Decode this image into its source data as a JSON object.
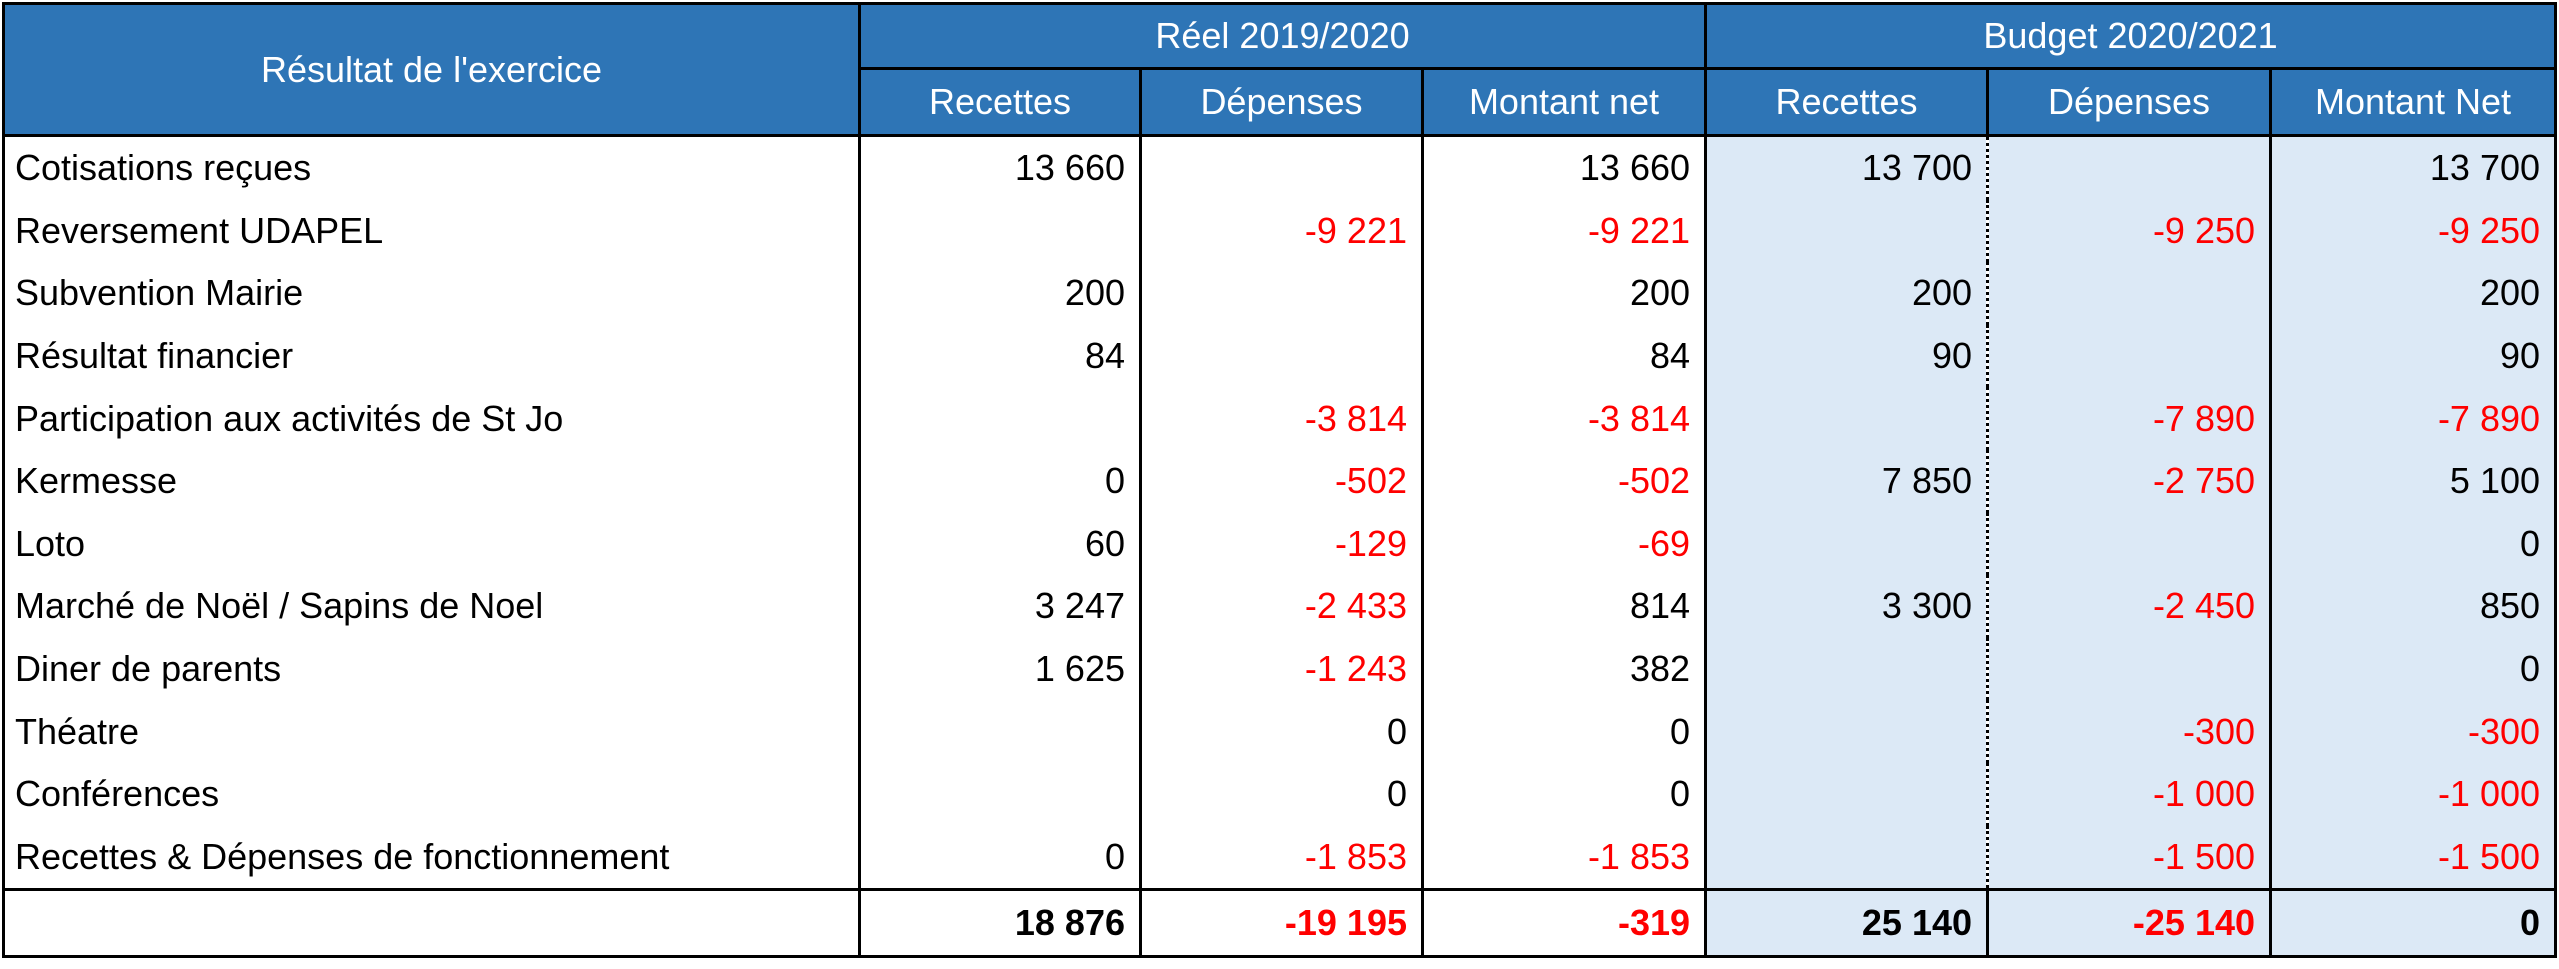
{
  "table": {
    "title": "Résultat de l'exercice",
    "groups": [
      "Réel 2019/2020",
      "Budget 2020/2021"
    ],
    "columns": [
      "Recettes",
      "Dépenses",
      "Montant net",
      "Recettes",
      "Dépenses",
      "Montant Net"
    ],
    "rows": [
      {
        "label": "Cotisations reçues",
        "cells": [
          "13 660",
          "",
          "13 660",
          "13 700",
          "",
          "13 700"
        ]
      },
      {
        "label": "Reversement UDAPEL",
        "cells": [
          "",
          "-9 221",
          "-9 221",
          "",
          "-9 250",
          "-9 250"
        ]
      },
      {
        "label": "Subvention Mairie",
        "cells": [
          "200",
          "",
          "200",
          "200",
          "",
          "200"
        ]
      },
      {
        "label": "Résultat financier",
        "cells": [
          "84",
          "",
          "84",
          "90",
          "",
          "90"
        ]
      },
      {
        "label": "Participation aux activités de St Jo",
        "cells": [
          "",
          "-3 814",
          "-3 814",
          "",
          "-7 890",
          "-7 890"
        ]
      },
      {
        "label": "Kermesse",
        "cells": [
          "0",
          "-502",
          "-502",
          "7 850",
          "-2 750",
          "5 100"
        ]
      },
      {
        "label": "Loto",
        "cells": [
          "60",
          "-129",
          "-69",
          "",
          "",
          "0"
        ]
      },
      {
        "label": "Marché de Noël / Sapins de Noel",
        "cells": [
          "3 247",
          "-2 433",
          "814",
          "3 300",
          "-2 450",
          "850"
        ]
      },
      {
        "label": "Diner de parents",
        "cells": [
          "1 625",
          "-1 243",
          "382",
          "",
          "",
          "0"
        ]
      },
      {
        "label": "Théatre",
        "cells": [
          "",
          "0",
          "0",
          "",
          "-300",
          "-300"
        ]
      },
      {
        "label": "Conférences",
        "cells": [
          "",
          "0",
          "0",
          "",
          "-1 000",
          "-1 000"
        ]
      },
      {
        "label": "Recettes & Dépenses de fonctionnement",
        "cells": [
          "0",
          "-1 853",
          "-1 853",
          "",
          "-1 500",
          "-1 500"
        ]
      }
    ],
    "totals": [
      "18 876",
      "-19 195",
      "-319",
      "25 140",
      "-25 140",
      "0"
    ]
  },
  "colors": {
    "header_bg": "#2e75b6",
    "header_text": "#ffffff",
    "budget_bg": "#dce9f6",
    "negative_text": "#ff0000"
  }
}
